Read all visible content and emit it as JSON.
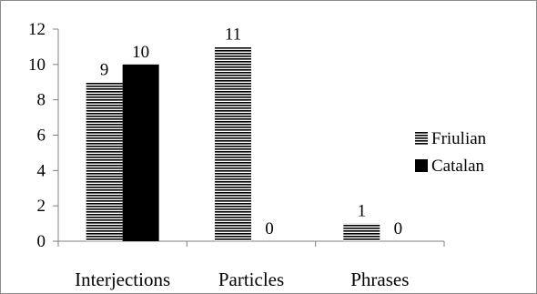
{
  "chart_data": {
    "type": "bar",
    "categories": [
      "Interjections",
      "Particles",
      "Phrases"
    ],
    "series": [
      {
        "name": "Friulian",
        "values": [
          9,
          11,
          1
        ],
        "pattern": "horizontal-stripes",
        "color": "#000000"
      },
      {
        "name": "Catalan",
        "values": [
          10,
          0,
          0
        ],
        "pattern": "solid",
        "color": "#000000"
      }
    ],
    "data_labels": [
      [
        "9",
        "10"
      ],
      [
        "11",
        "0"
      ],
      [
        "1",
        "0"
      ]
    ],
    "ylim": [
      0,
      12
    ],
    "yticks": [
      0,
      2,
      4,
      6,
      8,
      10,
      12
    ],
    "ytick_labels": [
      "0",
      "2",
      "4",
      "6",
      "8",
      "10",
      "12"
    ],
    "grid": false,
    "legend": "right",
    "title": "",
    "xlabel": "",
    "ylabel": ""
  }
}
